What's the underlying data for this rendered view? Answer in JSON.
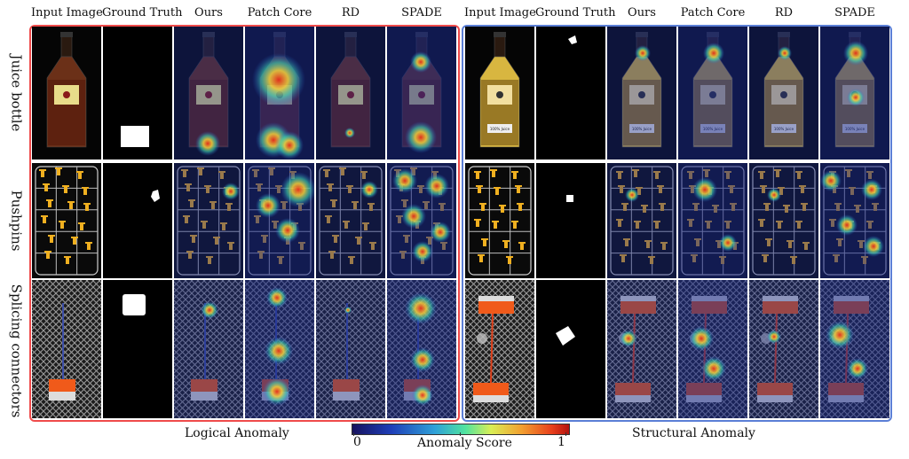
{
  "columns": [
    "Input Image",
    "Ground Truth",
    "Ours",
    "Patch Core",
    "RD",
    "SPADE"
  ],
  "rows": [
    "Juice bottle",
    "Pushpins",
    "Splicing connectors"
  ],
  "groups": {
    "logical": "Logical Anomaly",
    "structural": "Structural Anomaly"
  },
  "colorbar": {
    "title": "Anomaly Score",
    "min": "0",
    "max": "1"
  },
  "bottle_label_text": "100% Juice",
  "colors": {
    "logical_border": "#ef4b4b",
    "structural_border": "#5b7fd6",
    "heat_base": "#1a2a8c",
    "heat_hot": "#e8401c"
  }
}
